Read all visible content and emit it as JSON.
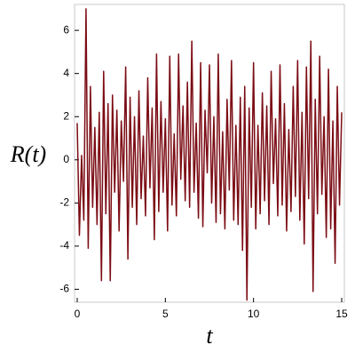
{
  "chart_data": {
    "type": "line",
    "x_label": "t",
    "y_label": "R(t)",
    "x": [
      0,
      0.125,
      0.25,
      0.375,
      0.5,
      0.625,
      0.75,
      0.875,
      1,
      1.125,
      1.25,
      1.375,
      1.5,
      1.625,
      1.75,
      1.875,
      2,
      2.125,
      2.25,
      2.375,
      2.5,
      2.625,
      2.75,
      2.875,
      3,
      3.125,
      3.25,
      3.375,
      3.5,
      3.625,
      3.75,
      3.875,
      4,
      4.125,
      4.25,
      4.375,
      4.5,
      4.625,
      4.75,
      4.875,
      5,
      5.125,
      5.25,
      5.375,
      5.5,
      5.625,
      5.75,
      5.875,
      6,
      6.125,
      6.25,
      6.375,
      6.5,
      6.625,
      6.75,
      6.875,
      7,
      7.125,
      7.25,
      7.375,
      7.5,
      7.625,
      7.75,
      7.875,
      8,
      8.125,
      8.25,
      8.375,
      8.5,
      8.625,
      8.75,
      8.875,
      9,
      9.125,
      9.25,
      9.375,
      9.5,
      9.625,
      9.75,
      9.875,
      10,
      10.125,
      10.25,
      10.375,
      10.5,
      10.625,
      10.75,
      10.875,
      11,
      11.125,
      11.25,
      11.375,
      11.5,
      11.625,
      11.75,
      11.875,
      12,
      12.125,
      12.25,
      12.375,
      12.5,
      12.625,
      12.75,
      12.875,
      13,
      13.125,
      13.25,
      13.375,
      13.5,
      13.625,
      13.75,
      13.875,
      14,
      14.125,
      14.25,
      14.375,
      14.5,
      14.625,
      14.75,
      14.875,
      15
    ],
    "series": [
      {
        "name": "R(t)",
        "color": "#7b0c14",
        "values": [
          1.7,
          -3.5,
          0.2,
          -2.8,
          7.0,
          -4.1,
          3.4,
          -2.2,
          1.5,
          -3.0,
          2.2,
          -5.6,
          4.1,
          -2.5,
          2.6,
          -5.6,
          3.0,
          -1.5,
          2.3,
          -3.3,
          1.8,
          -1.0,
          4.3,
          -4.6,
          2.9,
          -2.2,
          2.0,
          -3.0,
          3.2,
          -1.8,
          1.1,
          -2.6,
          3.8,
          -1.3,
          2.4,
          -3.7,
          4.9,
          -2.4,
          2.7,
          -1.5,
          1.9,
          -3.3,
          4.8,
          -2.1,
          1.2,
          -2.6,
          4.9,
          -0.9,
          2.5,
          -1.9,
          3.6,
          -2.2,
          5.5,
          -1.5,
          1.7,
          -2.7,
          4.5,
          -3.1,
          2.3,
          -0.6,
          4.4,
          -2.0,
          2.0,
          -2.9,
          4.9,
          -2.5,
          1.3,
          -3.2,
          2.8,
          -1.4,
          4.6,
          -2.8,
          1.6,
          -3.0,
          2.9,
          -4.2,
          3.4,
          -6.5,
          2.4,
          -2.2,
          4.5,
          -3.2,
          1.6,
          -2.5,
          3.1,
          -1.9,
          2.5,
          -3.0,
          4.1,
          -1.1,
          1.9,
          -2.6,
          4.4,
          -2.1,
          2.6,
          -3.3,
          1.4,
          -2.4,
          3.4,
          -1.7,
          4.6,
          -2.8,
          2.2,
          -3.9,
          4.3,
          -1.8,
          5.5,
          -6.1,
          2.8,
          -2.5,
          4.8,
          -1.6,
          2.0,
          -3.6,
          4.2,
          -3.2,
          1.8,
          -4.8,
          3.4,
          -2.1,
          2.2
        ]
      }
    ],
    "xlim": [
      -0.15,
      15.15
    ],
    "ylim": [
      -6.6,
      7.2
    ],
    "xticks": [
      0,
      5,
      10,
      15
    ],
    "yticks": [
      -6,
      -4,
      -2,
      0,
      2,
      4,
      6
    ]
  }
}
